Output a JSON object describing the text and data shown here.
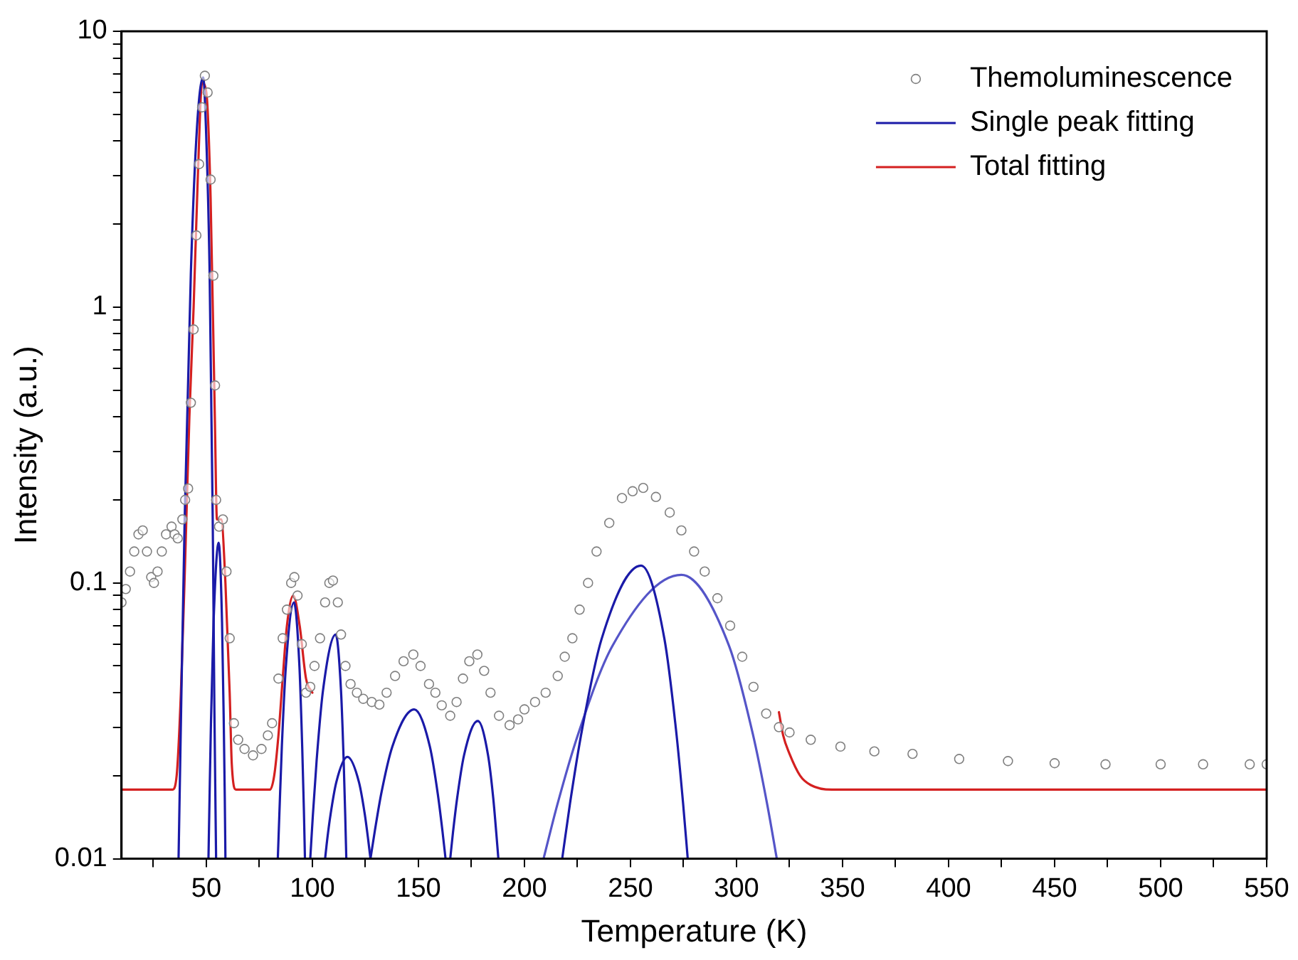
{
  "chart_data": {
    "type": "line",
    "xlabel": "Temperature (K)",
    "ylabel": "Intensity (a.u.)",
    "xlim": [
      10,
      550
    ],
    "xticks": [
      {
        "value": 25,
        "label": null
      },
      50,
      {
        "value": 75,
        "label": null
      },
      100,
      {
        "value": 125,
        "label": null
      },
      150,
      {
        "value": 175,
        "label": null
      },
      200,
      {
        "value": 225,
        "label": null
      },
      250,
      {
        "value": 275,
        "label": null
      },
      300,
      {
        "value": 325,
        "label": null
      },
      350,
      {
        "value": 375,
        "label": null
      },
      400,
      {
        "value": 425,
        "label": null
      },
      450,
      {
        "value": 475,
        "label": null
      },
      500,
      {
        "value": 525,
        "label": null
      },
      550
    ],
    "ylim": [
      0.01,
      10
    ],
    "yticks": [
      0.01,
      {
        "value": 0.02,
        "label": null
      },
      {
        "value": 0.03,
        "label": null
      },
      {
        "value": 0.04,
        "label": null
      },
      {
        "value": 0.05,
        "label": null
      },
      {
        "value": 0.06,
        "label": null
      },
      {
        "value": 0.07,
        "label": null
      },
      {
        "value": 0.08,
        "label": null
      },
      {
        "value": 0.09,
        "label": null
      },
      0.1,
      {
        "value": 0.2,
        "label": null
      },
      {
        "value": 0.3,
        "label": null
      },
      {
        "value": 0.4,
        "label": null
      },
      {
        "value": 0.5,
        "label": null
      },
      {
        "value": 0.6,
        "label": null
      },
      {
        "value": 0.7,
        "label": null
      },
      {
        "value": 0.8,
        "label": null
      },
      {
        "value": 0.9,
        "label": null
      },
      1,
      {
        "value": 2,
        "label": null
      },
      {
        "value": 3,
        "label": null
      },
      {
        "value": 4,
        "label": null
      },
      {
        "value": 5,
        "label": null
      },
      {
        "value": 6,
        "label": null
      },
      {
        "value": 7,
        "label": null
      },
      {
        "value": 8,
        "label": null
      },
      {
        "value": 9,
        "label": null
      },
      10
    ],
    "log": "y",
    "grid": false,
    "legend": "top right",
    "series": [
      {
        "name": "Themoluminescence",
        "type": "scatter",
        "marker": "circle",
        "color": "#808080",
        "x": [
          10,
          12,
          14,
          16,
          18,
          20,
          22,
          24,
          25.3,
          27,
          29,
          31,
          33.6,
          35,
          36.5,
          38.7,
          40,
          41.4,
          42.7,
          44,
          45.3,
          46.6,
          48,
          49.3,
          50.6,
          52,
          53.3,
          54.1,
          54.6,
          56,
          57.8,
          59.5,
          61,
          63,
          65,
          68,
          72,
          76,
          79,
          81,
          84,
          86,
          88,
          90,
          91.5,
          93,
          95,
          97,
          99,
          101,
          103.6,
          106,
          108,
          109.7,
          112,
          113.5,
          115.6,
          118,
          121,
          124,
          128,
          131.6,
          135,
          139,
          143,
          147.6,
          151,
          155,
          158,
          161,
          165,
          168,
          171,
          174,
          177.8,
          181,
          184,
          188,
          193,
          197,
          200,
          205,
          210,
          215.7,
          219,
          222.6,
          226,
          230,
          234,
          240,
          246,
          251,
          256,
          262,
          268.5,
          274,
          280,
          285,
          291,
          297,
          302.7,
          308,
          314,
          320,
          325,
          335,
          349,
          365,
          383,
          405,
          428,
          450,
          474,
          500,
          520,
          542,
          550
        ],
        "values": [
          0.085,
          0.095,
          0.11,
          0.13,
          0.15,
          0.155,
          0.13,
          0.105,
          0.1,
          0.11,
          0.13,
          0.15,
          0.16,
          0.15,
          0.145,
          0.17,
          0.2,
          0.22,
          0.45,
          0.83,
          1.82,
          3.3,
          5.3,
          6.9,
          6.0,
          2.9,
          1.3,
          0.52,
          0.2,
          0.16,
          0.17,
          0.11,
          0.063,
          0.031,
          0.027,
          0.025,
          0.0237,
          0.025,
          0.028,
          0.031,
          0.045,
          0.063,
          0.08,
          0.1,
          0.105,
          0.09,
          0.06,
          0.04,
          0.042,
          0.05,
          0.063,
          0.085,
          0.1,
          0.102,
          0.085,
          0.065,
          0.05,
          0.043,
          0.04,
          0.038,
          0.037,
          0.0362,
          0.04,
          0.046,
          0.052,
          0.055,
          0.05,
          0.043,
          0.04,
          0.036,
          0.033,
          0.037,
          0.045,
          0.052,
          0.055,
          0.048,
          0.04,
          0.033,
          0.0305,
          0.032,
          0.0348,
          0.037,
          0.04,
          0.046,
          0.054,
          0.063,
          0.08,
          0.1,
          0.13,
          0.165,
          0.203,
          0.215,
          0.221,
          0.205,
          0.18,
          0.155,
          0.13,
          0.11,
          0.088,
          0.07,
          0.054,
          0.042,
          0.0336,
          0.03,
          0.0287,
          0.027,
          0.0255,
          0.0245,
          0.024,
          0.023,
          0.0226,
          0.0222,
          0.022,
          0.022,
          0.022,
          0.022,
          0.022
        ]
      },
      {
        "name": "Single peak fitting",
        "marker": "none",
        "color": "#1a1aa8",
        "x": [
          36.9,
          38.1,
          39.8,
          42.7,
          45.6,
          48.5,
          49.8,
          51.55,
          53,
          53.8,
          54.6
        ],
        "values": [
          0.01,
          0.0345,
          0.173,
          1.33,
          4.5,
          6.8,
          4.5,
          1.33,
          0.173,
          0.0345,
          0.01
        ]
      },
      {
        "marker": "none",
        "color": "#1a1aa8",
        "x": [
          51,
          51.5,
          52.2,
          53.4,
          55.8,
          57.4,
          58.2,
          58.7,
          59
        ],
        "values": [
          0.01,
          0.0165,
          0.0317,
          0.072,
          0.14,
          0.072,
          0.0317,
          0.0165,
          0.01
        ]
      },
      {
        "marker": "none",
        "color": "#1a1aa8",
        "x": [
          83.7,
          84.5,
          85.6,
          87.5,
          91.3,
          93.9,
          95.2,
          96,
          96.5
        ],
        "values": [
          0.01,
          0.015,
          0.0255,
          0.0497,
          0.085,
          0.0497,
          0.0255,
          0.015,
          0.01
        ]
      },
      {
        "marker": "none",
        "color": "#1a1aa8",
        "x": [
          99,
          100.2,
          102,
          105,
          111,
          113.5,
          114.75,
          115.5,
          116
        ],
        "values": [
          0.01,
          0.01426,
          0.0227,
          0.0407,
          0.065,
          0.0407,
          0.0227,
          0.01426,
          0.01
        ]
      },
      {
        "marker": "none",
        "color": "#1a1aa8",
        "x": [
          106,
          107,
          108.6,
          111.25,
          116.5,
          122,
          124.7,
          126.3,
          127.4
        ],
        "values": [
          0.01,
          0.01175,
          0.01452,
          0.0189,
          0.0234,
          0.0189,
          0.01452,
          0.01175,
          0.01
        ]
      },
      {
        "marker": "none",
        "color": "#1a1aa8",
        "x": [
          127.4,
          129.5,
          132.5,
          137.7,
          148,
          155.4,
          159.1,
          161.3,
          162.8
        ],
        "values": [
          0.01,
          0.01268,
          0.01726,
          0.0255,
          0.0348,
          0.0255,
          0.01726,
          0.01268,
          0.01
        ]
      },
      {
        "marker": "none",
        "color": "#1a1aa8",
        "x": [
          165,
          166.3,
          168.25,
          171.5,
          178,
          182.85,
          185.3,
          186.7,
          187.7
        ],
        "values": [
          0.01,
          0.01245,
          0.01655,
          0.0237,
          0.0316,
          0.0237,
          0.01655,
          0.01245,
          0.01
        ]
      },
      {
        "marker": "none",
        "color": "#1a1aa8",
        "x": [
          217.8,
          221.5,
          227.1,
          236.4,
          255,
          266,
          271.5,
          274.8,
          277
        ],
        "values": [
          0.01,
          0.0159,
          0.0292,
          0.0627,
          0.1155,
          0.0627,
          0.0292,
          0.0159,
          0.01
        ]
      },
      {
        "marker": "none",
        "color": "#5555c8",
        "x": [
          209,
          215.5,
          225.25,
          241.5,
          274,
          296.5,
          307.75,
          314.5,
          319
        ],
        "values": [
          0.01,
          0.0157,
          0.0282,
          0.0591,
          0.107,
          0.0591,
          0.0282,
          0.0157,
          0.01
        ]
      },
      {
        "name": "Total fitting",
        "marker": "none",
        "color": "#d42020",
        "x": [
          10,
          34,
          36,
          38,
          40,
          42,
          44,
          46,
          48,
          50,
          52,
          54,
          55,
          57,
          59,
          61,
          62,
          64,
          80,
          82,
          84,
          86,
          88,
          91,
          94,
          97,
          100,
          110,
          320,
          322,
          325,
          330,
          335,
          345,
          550
        ],
        "values": [
          0.0178,
          0.0178,
          0.02,
          0.04,
          0.12,
          0.4,
          1.0,
          3.0,
          6.5,
          6.0,
          2.5,
          0.4,
          0.17,
          0.17,
          0.1,
          0.04,
          0.022,
          0.0178,
          0.0178,
          0.02,
          0.028,
          0.045,
          0.07,
          0.09,
          0.07,
          0.045,
          0.04,
          null,
          0.034,
          0.028,
          0.024,
          0.02,
          0.0185,
          0.0178,
          0.0178
        ]
      }
    ]
  }
}
